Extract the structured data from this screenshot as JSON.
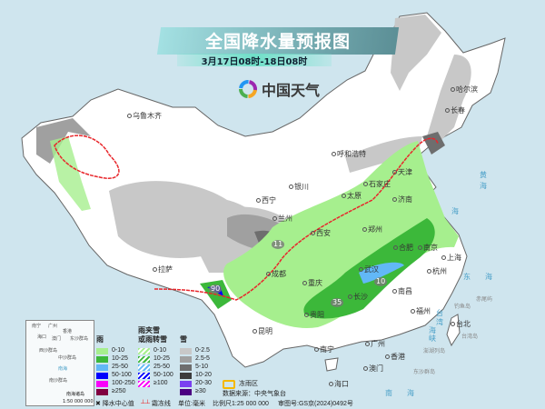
{
  "header": {
    "title": "全国降水量预报图",
    "subtitle": "3月17日08时-18日08时",
    "brand": "中国天气"
  },
  "cities": [
    "乌鲁木齐",
    "哈尔滨",
    "长春",
    "呼和浩特",
    "天津",
    "石家庄",
    "银川",
    "太原",
    "济南",
    "西宁",
    "兰州",
    "郑州",
    "西安",
    "合肥",
    "南京",
    "上海",
    "拉萨",
    "成都",
    "武汉",
    "杭州",
    "重庆",
    "长沙",
    "南昌",
    "贵阳",
    "福州",
    "昆明",
    "台北",
    "南宁",
    "广州",
    "香港",
    "澳门",
    "海口"
  ],
  "seas": [
    "海",
    "东",
    "海",
    "黄",
    "海",
    "台",
    "湾",
    "海",
    "峡",
    "南",
    "海"
  ],
  "islands": [
    "钓鱼岛",
    "赤尾屿",
    "台湾岛",
    "澎湖列岛",
    "东沙群岛"
  ],
  "center_values": [
    "90",
    "35",
    "10",
    "11"
  ],
  "legend": {
    "rain": {
      "title": "雨",
      "items": [
        {
          "label": "0-10",
          "color": "#a6ef8e"
        },
        {
          "label": "10-25",
          "color": "#3cb83a"
        },
        {
          "label": "25-50",
          "color": "#62b8f7"
        },
        {
          "label": "50-100",
          "color": "#0000fe"
        },
        {
          "label": "100-250",
          "color": "#fa00fa"
        },
        {
          "label": "≥250",
          "color": "#800040"
        }
      ]
    },
    "mixed": {
      "title": "雨夹雪\n或雨转雪",
      "items": [
        {
          "label": "0-10",
          "color": "#a6ef8e"
        },
        {
          "label": "10-25",
          "color": "#3cb83a"
        },
        {
          "label": "25-50",
          "color": "#62b8f7"
        },
        {
          "label": "50-100",
          "color": "#0000fe"
        },
        {
          "label": "≥100",
          "color": "#fa00fa"
        }
      ]
    },
    "snow": {
      "title": "雪",
      "items": [
        {
          "label": "0-2.5",
          "color": "#c8c8c8"
        },
        {
          "label": "2.5-5",
          "color": "#a0a0a0"
        },
        {
          "label": "5-10",
          "color": "#6e6e6e"
        },
        {
          "label": "10-20",
          "color": "#3c3c3c"
        },
        {
          "label": "20-30",
          "color": "#7a40f0"
        },
        {
          "label": "≥30",
          "color": "#4b0082"
        }
      ]
    },
    "freezing_rain": {
      "label": "冻雨区",
      "color": "#f5b800"
    },
    "source": "数据来源：中央气象台",
    "center_marker": "降水中心值",
    "frost_line": "霜冻线",
    "unit": "单位:毫米",
    "scale": "比例尺1:25 000 000",
    "approval": "审图号:GS京(2024)0492号"
  },
  "inset": {
    "title": "南海诸岛",
    "scale": "1:50 000 000",
    "labels": [
      "南宁",
      "广州",
      "香港",
      "海口",
      "澳门",
      "东沙群岛",
      "西沙群岛",
      "中沙群岛",
      "南海",
      "南沙群岛"
    ]
  },
  "colors": {
    "sea": "#cfe5ee",
    "land": "#ffffff",
    "frost_line": "#e8262b"
  }
}
